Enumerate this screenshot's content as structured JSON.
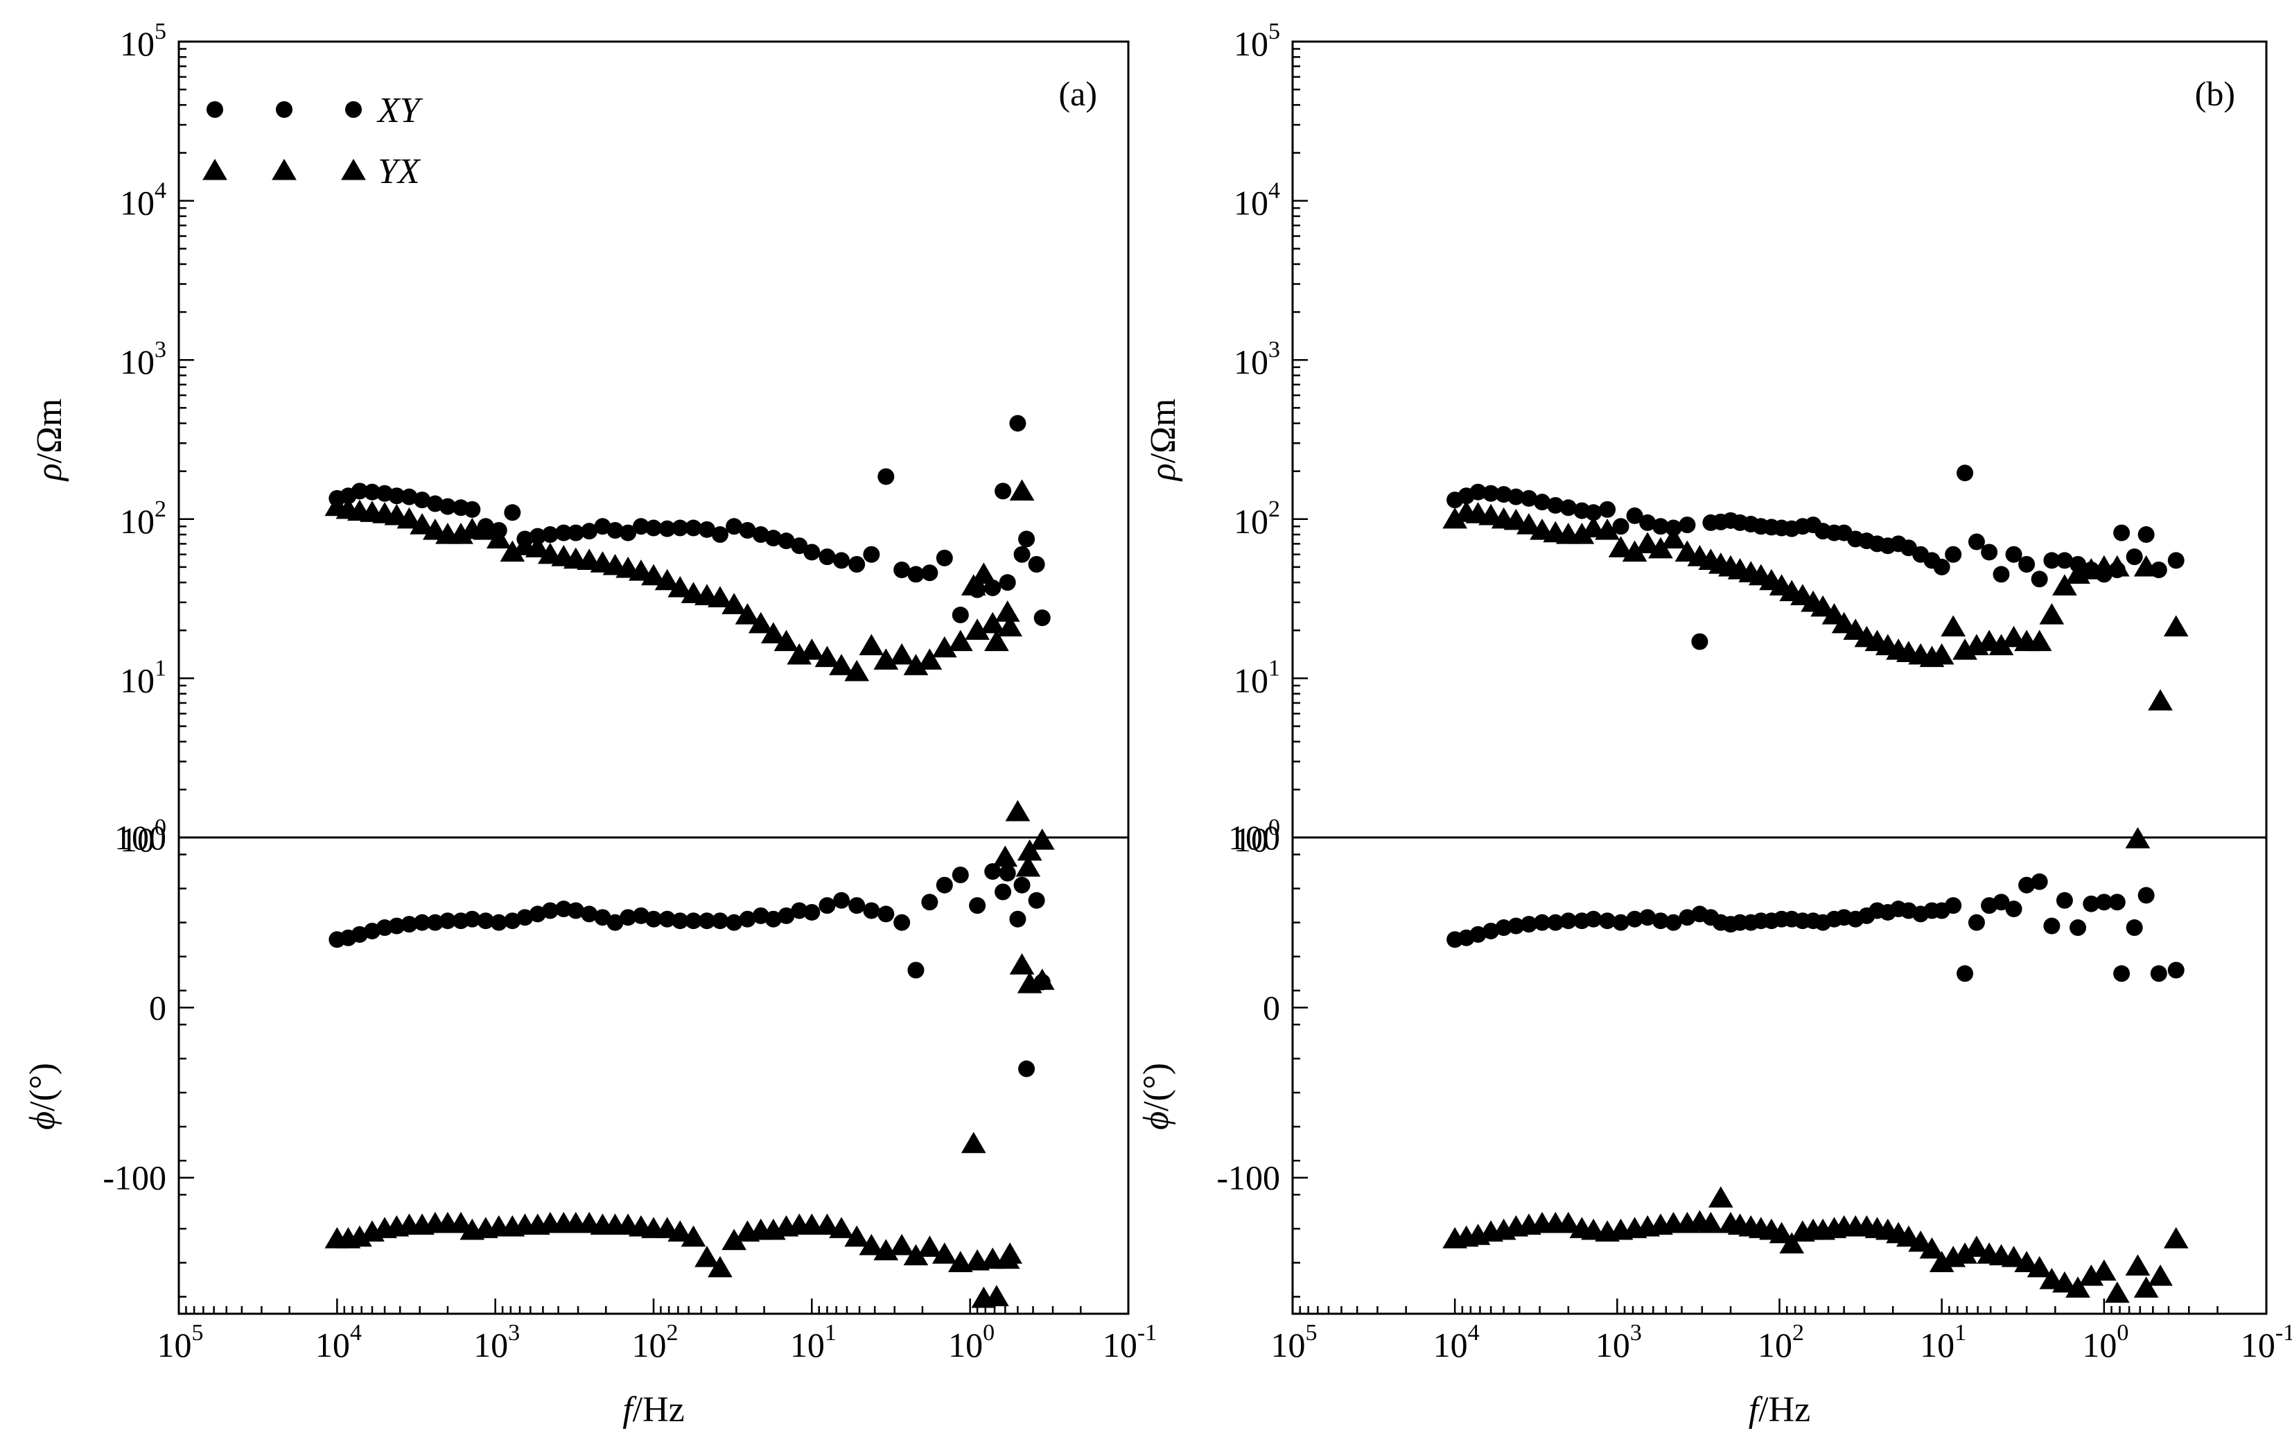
{
  "figure": {
    "legend": [
      {
        "series": "XY",
        "label": "XY",
        "marker": "circle"
      },
      {
        "series": "YX",
        "label": "YX",
        "marker": "triangle"
      }
    ],
    "rho_label": {
      "symbol": "ρ",
      "unit": "/Ωm"
    },
    "phi_label": {
      "symbol": "ϕ",
      "unit": "/(°)"
    },
    "x_label": {
      "symbol": "f",
      "unit": "/Hz"
    },
    "rho_ticks": [
      {
        "base": "10",
        "exp": "0"
      },
      {
        "base": "10",
        "exp": "1"
      },
      {
        "base": "10",
        "exp": "2"
      },
      {
        "base": "10",
        "exp": "3"
      },
      {
        "base": "10",
        "exp": "4"
      },
      {
        "base": "10",
        "exp": "5"
      }
    ],
    "phi_ticks": [
      "100",
      "0",
      "-100"
    ],
    "x_ticks": [
      {
        "base": "10",
        "exp": "5"
      },
      {
        "base": "10",
        "exp": "4"
      },
      {
        "base": "10",
        "exp": "3"
      },
      {
        "base": "10",
        "exp": "2"
      },
      {
        "base": "10",
        "exp": "1"
      },
      {
        "base": "10",
        "exp": "0"
      },
      {
        "base": "10",
        "exp": "-1"
      }
    ]
  },
  "chart_data": [
    {
      "type": "scatter",
      "panel": "(a)",
      "x_scale": "log",
      "x_reversed": true,
      "xlim": [
        100000,
        0.1
      ],
      "rho_scale": "log",
      "rho_lim": [
        1,
        100000
      ],
      "phi_lim": [
        -180,
        100
      ],
      "series": [
        {
          "name": "XY",
          "f": [
            10000,
            8500,
            7200,
            6000,
            5000,
            4200,
            3500,
            2900,
            2400,
            2000,
            1650,
            1400,
            1150,
            950,
            780,
            650,
            540,
            450,
            370,
            310,
            255,
            210,
            175,
            145,
            120,
            100,
            82,
            68,
            56,
            46,
            38,
            31,
            25.5,
            21,
            17.5,
            14.5,
            12,
            10,
            8,
            6.5,
            5.2,
            4.2,
            3.4,
            2.7,
            2.2,
            1.8,
            1.45,
            1.15,
            0.9,
            0.72,
            0.58,
            0.47,
            0.38
          ],
          "rho": [
            135,
            140,
            150,
            148,
            145,
            140,
            138,
            132,
            125,
            120,
            118,
            115,
            90,
            85,
            110,
            75,
            78,
            80,
            82,
            82,
            84,
            90,
            85,
            82,
            90,
            88,
            87,
            88,
            88,
            86,
            80,
            90,
            85,
            80,
            76,
            73,
            68,
            62,
            58,
            55,
            52,
            60,
            185,
            48,
            45,
            46,
            57,
            25,
            36,
            37,
            40,
            60,
            52
          ],
          "phi": [
            40,
            41,
            43,
            45,
            47,
            48,
            49,
            50,
            50,
            51,
            51,
            52,
            51,
            50,
            51,
            53,
            55,
            57,
            58,
            57,
            55,
            53,
            50,
            53,
            54,
            52,
            52,
            51,
            51,
            51,
            51,
            50,
            52,
            54,
            52,
            54,
            57,
            56,
            60,
            63,
            60,
            57,
            55,
            50,
            22,
            62,
            72,
            78,
            60,
            80,
            79,
            72,
            63
          ]
        },
        {
          "name": "XY",
          "f": [
            0.62,
            0.5,
            0.44,
            0.35
          ],
          "rho": [
            150,
            400,
            75,
            24
          ],
          "phi": [
            68,
            52,
            -36,
            15
          ]
        },
        {
          "name": "YX",
          "f": [
            10000,
            8500,
            7200,
            6000,
            5000,
            4200,
            3500,
            2900,
            2400,
            2000,
            1650,
            1400,
            1150,
            950,
            780,
            650,
            540,
            450,
            370,
            310,
            255,
            210,
            175,
            145,
            120,
            100,
            82,
            68,
            56,
            46,
            38,
            31,
            25.5,
            21,
            17.5,
            14.5,
            12,
            10,
            8,
            6.5,
            5.2,
            4.2,
            3.4,
            2.7,
            2.2,
            1.8,
            1.45,
            1.15,
            0.9,
            0.72,
            0.58
          ],
          "rho": [
            120,
            115,
            112,
            110,
            108,
            105,
            100,
            92,
            85,
            80,
            80,
            86,
            85,
            75,
            62,
            68,
            66,
            60,
            58,
            56,
            55,
            53,
            51,
            49,
            47,
            44,
            41,
            37,
            34,
            33,
            32,
            29,
            25,
            22,
            19,
            17,
            14,
            15,
            13.5,
            12,
            11,
            16,
            13,
            14,
            12,
            13,
            15.5,
            17,
            20,
            22,
            26
          ],
          "phi": [
            -136,
            -136,
            -135,
            -132,
            -130,
            -129,
            -128,
            -128,
            -127,
            -127,
            -127,
            -131,
            -130,
            -129,
            -129,
            -128,
            -128,
            -127,
            -127,
            -127,
            -127,
            -128,
            -128,
            -128,
            -129,
            -130,
            -130,
            -132,
            -135,
            -147,
            -153,
            -137,
            -132,
            -131,
            -131,
            -129,
            -128,
            -128,
            -128,
            -130,
            -135,
            -140,
            -143,
            -140,
            -146,
            -141,
            -145,
            -150,
            -149,
            -148,
            -148
          ]
        },
        {
          "name": "YX",
          "f": [
            0.95,
            0.82,
            0.68,
            0.56,
            0.47,
            0.42,
            0.35
          ],
          "rho": [
            38,
            45,
            17,
            21,
            150,
            0.82,
            0.96
          ],
          "phi": [
            -80,
            -171,
            -170,
            -145,
            25,
            14,
            16
          ]
        },
        {
          "name": "YX",
          "f": [
            0.6,
            0.5,
            0.43
          ],
          "rho": [
            0.75,
            1.45,
            0.65
          ],
          "phi": [
            null,
            null,
            null
          ]
        }
      ]
    },
    {
      "type": "scatter",
      "panel": "(b)",
      "x_scale": "log",
      "x_reversed": true,
      "xlim": [
        100000,
        0.1
      ],
      "rho_scale": "log",
      "rho_lim": [
        1,
        100000
      ],
      "phi_lim": [
        -180,
        100
      ],
      "series": [
        {
          "name": "XY",
          "f": [
            10000,
            8500,
            7200,
            6000,
            5000,
            4200,
            3500,
            2900,
            2400,
            2000,
            1650,
            1400,
            1150,
            950,
            780,
            650,
            540,
            450,
            370,
            310,
            265,
            230,
            200,
            175,
            150,
            130,
            112,
            97,
            84,
            72,
            62,
            54,
            46,
            40,
            34,
            29,
            25,
            21.5,
            18.5,
            16,
            13.5,
            11.5,
            10,
            8.5,
            7.2,
            6.1,
            5.1,
            4.3,
            3.6,
            3,
            2.5,
            2.1,
            1.75,
            1.45,
            1.2,
            1.0,
            0.83
          ],
          "rho": [
            132,
            140,
            148,
            145,
            143,
            138,
            135,
            128,
            122,
            118,
            113,
            110,
            115,
            90,
            105,
            95,
            90,
            88,
            92,
            17,
            95,
            96,
            98,
            95,
            93,
            90,
            89,
            88,
            87,
            90,
            92,
            84,
            82,
            82,
            75,
            73,
            70,
            68,
            70,
            66,
            60,
            55,
            50,
            60,
            195,
            72,
            62,
            45,
            60,
            52,
            42,
            55,
            55,
            52,
            48,
            45,
            48
          ],
          "phi": [
            40,
            41,
            43,
            45,
            47,
            48,
            49,
            50,
            50,
            51,
            51,
            52,
            51,
            50,
            52,
            53,
            51,
            50,
            53,
            55,
            53,
            50,
            49,
            50,
            50,
            51,
            51,
            52,
            52,
            51,
            51,
            50,
            52,
            53,
            52,
            54,
            57,
            56,
            58,
            57,
            55,
            57,
            57,
            60,
            20,
            50,
            60,
            62,
            58,
            72,
            74,
            48,
            63,
            47,
            61,
            62,
            62
          ]
        },
        {
          "name": "XY",
          "f": [
            0.78,
            0.65,
            0.55,
            0.46,
            0.36
          ],
          "rho": [
            82,
            58,
            80,
            48,
            55
          ],
          "phi": [
            20,
            47,
            66,
            20,
            22
          ]
        },
        {
          "name": "YX",
          "f": [
            10000,
            8500,
            7200,
            6000,
            5000,
            4200,
            3500,
            2900,
            2400,
            2000,
            1650,
            1400,
            1150,
            950,
            780,
            650,
            540,
            450,
            370,
            310,
            265,
            230,
            200,
            175,
            150,
            130,
            112,
            97,
            84,
            72,
            62,
            54,
            46,
            40,
            34,
            29,
            25,
            21.5,
            18.5,
            16,
            13.5,
            11.5,
            10,
            8.5,
            7.2,
            6.1,
            5.1,
            4.3,
            3.6,
            3,
            2.5,
            2.1,
            1.75,
            1.45,
            1.2,
            1.0,
            0.83
          ],
          "rho": [
            100,
            110,
            108,
            105,
            100,
            98,
            92,
            85,
            82,
            80,
            80,
            88,
            85,
            66,
            62,
            70,
            65,
            75,
            62,
            58,
            55,
            52,
            50,
            48,
            46,
            44,
            41,
            38,
            35,
            33,
            30,
            28,
            25,
            22,
            20,
            18,
            17,
            16,
            15,
            14.5,
            14,
            13.5,
            14,
            21,
            15,
            16,
            17,
            16,
            18,
            17,
            17,
            25,
            38,
            45,
            48,
            50,
            50
          ],
          "phi": [
            -136,
            -135,
            -134,
            -132,
            -131,
            -129,
            -128,
            -127,
            -127,
            -127,
            -130,
            -131,
            -132,
            -131,
            -130,
            -129,
            -128,
            -127,
            -127,
            -126,
            -127,
            -112,
            -127,
            -128,
            -129,
            -130,
            -131,
            -133,
            -139,
            -132,
            -131,
            -131,
            -130,
            -129,
            -129,
            -129,
            -130,
            -131,
            -133,
            -135,
            -138,
            -142,
            -150,
            -147,
            -145,
            -141,
            -145,
            -146,
            -147,
            -150,
            -153,
            -160,
            -162,
            -165,
            -158,
            -155,
            -168
          ]
        },
        {
          "name": "YX",
          "f": [
            0.62,
            0.55,
            0.45,
            0.36
          ],
          "rho": [
            0.98,
            50,
            7.2,
            21
          ],
          "phi": [
            -152,
            -165,
            -158,
            -136
          ]
        }
      ]
    }
  ]
}
